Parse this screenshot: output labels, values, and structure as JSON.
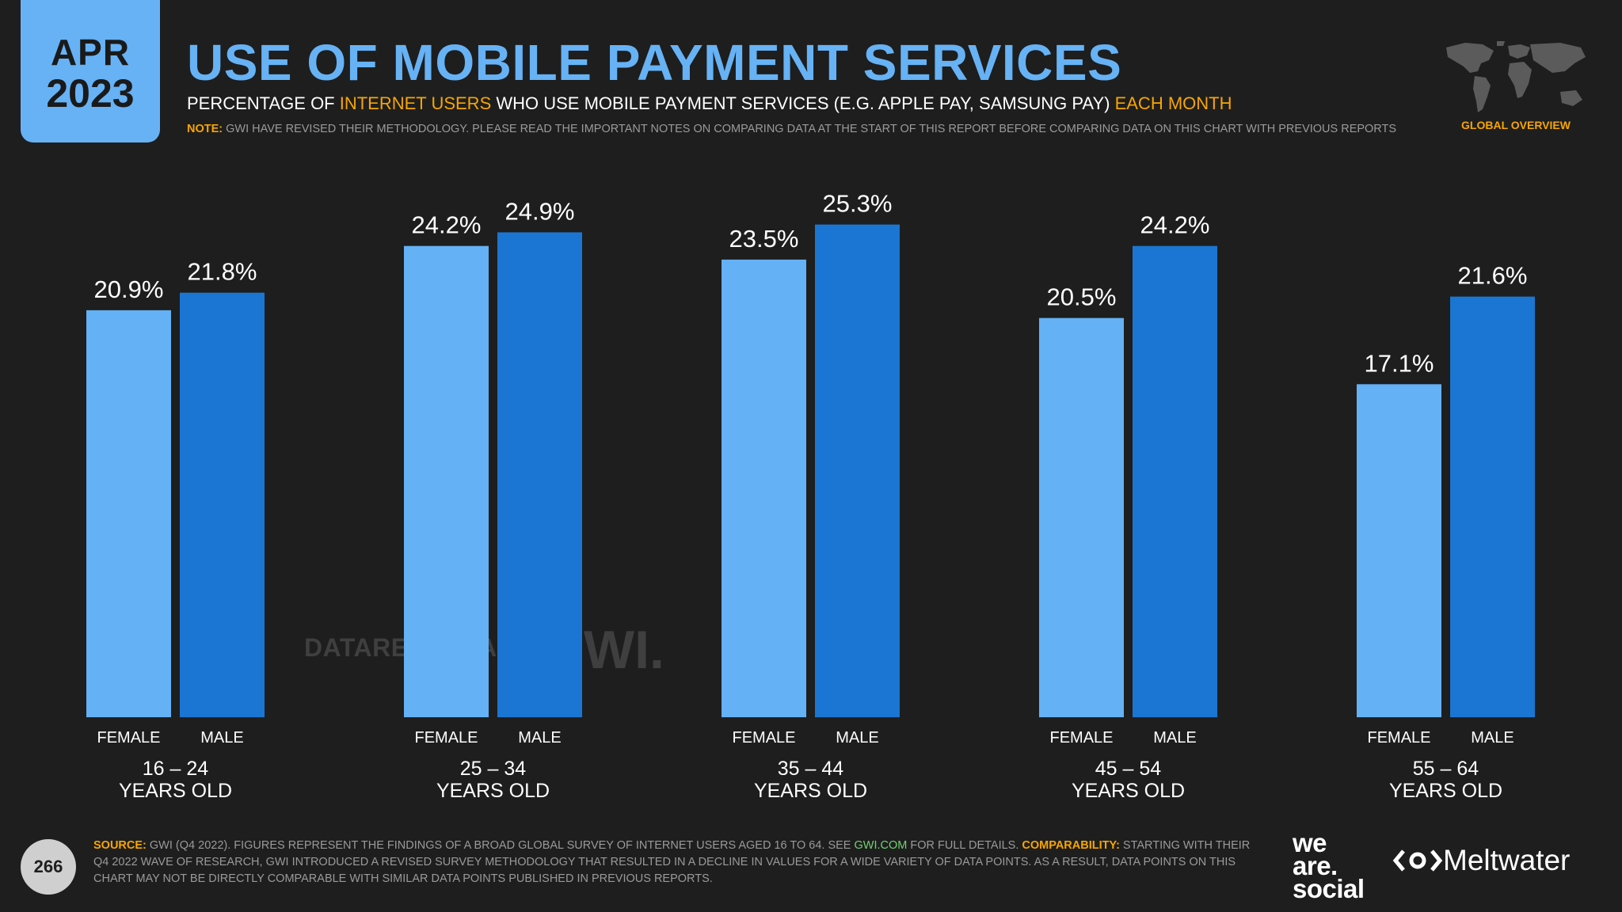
{
  "header": {
    "date_month": "APR",
    "date_year": "2023",
    "title": "USE OF MOBILE PAYMENT SERVICES",
    "subtitle_part1": "PERCENTAGE OF ",
    "subtitle_highlight1": "INTERNET USERS",
    "subtitle_part2": " WHO USE MOBILE PAYMENT SERVICES (E.G. APPLE PAY, SAMSUNG PAY) ",
    "subtitle_highlight2": "EACH MONTH",
    "note_label": "NOTE:",
    "note_text": " GWI HAVE REVISED THEIR METHODOLOGY. PLEASE READ THE IMPORTANT NOTES ON COMPARING DATA AT THE START OF THIS REPORT BEFORE COMPARING DATA ON THIS CHART WITH PREVIOUS REPORTS",
    "map_label": "GLOBAL OVERVIEW"
  },
  "colors": {
    "background": "#1e1e1e",
    "female": "#64b1f5",
    "male": "#1a76d2",
    "accent": "#f7a600",
    "title": "#66b2f5"
  },
  "chart_data": {
    "type": "bar",
    "title": "USE OF MOBILE PAYMENT SERVICES",
    "xlabel": "",
    "ylabel": "",
    "ylim": [
      0,
      30
    ],
    "grid": false,
    "categories": [
      "16 – 24 YEARS OLD",
      "25 – 34 YEARS OLD",
      "35 – 44 YEARS OLD",
      "45 – 54 YEARS OLD",
      "55 – 64 YEARS OLD"
    ],
    "groups": [
      {
        "line1": "16 – 24",
        "line2": "YEARS OLD"
      },
      {
        "line1": "25 – 34",
        "line2": "YEARS OLD"
      },
      {
        "line1": "35 – 44",
        "line2": "YEARS OLD"
      },
      {
        "line1": "45 – 54",
        "line2": "YEARS OLD"
      },
      {
        "line1": "55 – 64",
        "line2": "YEARS OLD"
      }
    ],
    "series": [
      {
        "name": "FEMALE",
        "values": [
          20.9,
          24.2,
          23.5,
          20.5,
          17.1
        ],
        "labels": [
          "20.9%",
          "24.2%",
          "23.5%",
          "20.5%",
          "17.1%"
        ]
      },
      {
        "name": "MALE",
        "values": [
          21.8,
          24.9,
          25.3,
          24.2,
          21.6
        ],
        "labels": [
          "21.8%",
          "24.9%",
          "25.3%",
          "24.2%",
          "21.6%"
        ]
      }
    ]
  },
  "watermarks": {
    "datareportal": "DATAREPORTAL",
    "gwi": "GWI."
  },
  "footer": {
    "page_number": "266",
    "source_label": "SOURCE:",
    "source_text": " GWI (Q4 2022). FIGURES REPRESENT THE FINDINGS OF A BROAD GLOBAL SURVEY OF INTERNET USERS AGED 16 TO 64. SEE ",
    "source_link": "GWI.COM",
    "source_text2": " FOR FULL DETAILS. ",
    "comparability_label": "COMPARABILITY:",
    "comparability_text": " STARTING WITH THEIR Q4 2022 WAVE OF RESEARCH, GWI INTRODUCED A REVISED SURVEY METHODOLOGY THAT RESULTED IN A DECLINE IN VALUES FOR A WIDE VARIETY OF DATA POINTS. AS A RESULT, DATA POINTS ON THIS CHART MAY NOT BE DIRECTLY COMPARABLE WITH SIMILAR DATA POINTS PUBLISHED IN PREVIOUS REPORTS.",
    "we_are_social_line1": "we",
    "we_are_social_line2": "are.",
    "we_are_social_line3": "social",
    "meltwater": "Meltwater"
  }
}
